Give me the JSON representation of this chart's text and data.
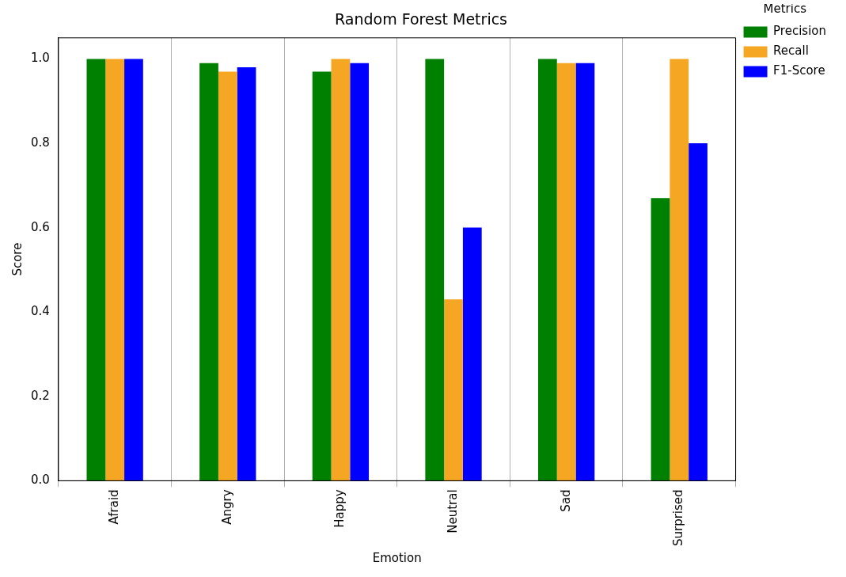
{
  "chart_data": {
    "type": "bar",
    "title": "Random Forest Metrics",
    "xlabel": "Emotion",
    "ylabel": "Score",
    "legend_title": "Metrics",
    "legend": "top right",
    "grid": "x",
    "categories": [
      "Afraid",
      "Angry",
      "Happy",
      "Neutral",
      "Sad",
      "Surprised"
    ],
    "series": [
      {
        "name": "Precision",
        "color": "#008000",
        "values": [
          1.0,
          0.99,
          0.97,
          1.0,
          1.0,
          0.67
        ]
      },
      {
        "name": "Recall",
        "color": "#f5a623",
        "values": [
          1.0,
          0.97,
          1.0,
          0.43,
          0.99,
          1.0
        ]
      },
      {
        "name": "F1-Score",
        "color": "#0000ff",
        "values": [
          1.0,
          0.98,
          0.99,
          0.6,
          0.99,
          0.8
        ]
      }
    ],
    "ylim": [
      0,
      1.05
    ],
    "yticks": [
      {
        "value": 0,
        "label": "0.0"
      },
      {
        "value": 0.2,
        "label": "0.2"
      },
      {
        "value": 0.4,
        "label": "0.4"
      },
      {
        "value": 0.6,
        "label": "0.6"
      },
      {
        "value": 0.8,
        "label": "0.8"
      },
      {
        "value": 1,
        "label": "1.0"
      }
    ]
  }
}
